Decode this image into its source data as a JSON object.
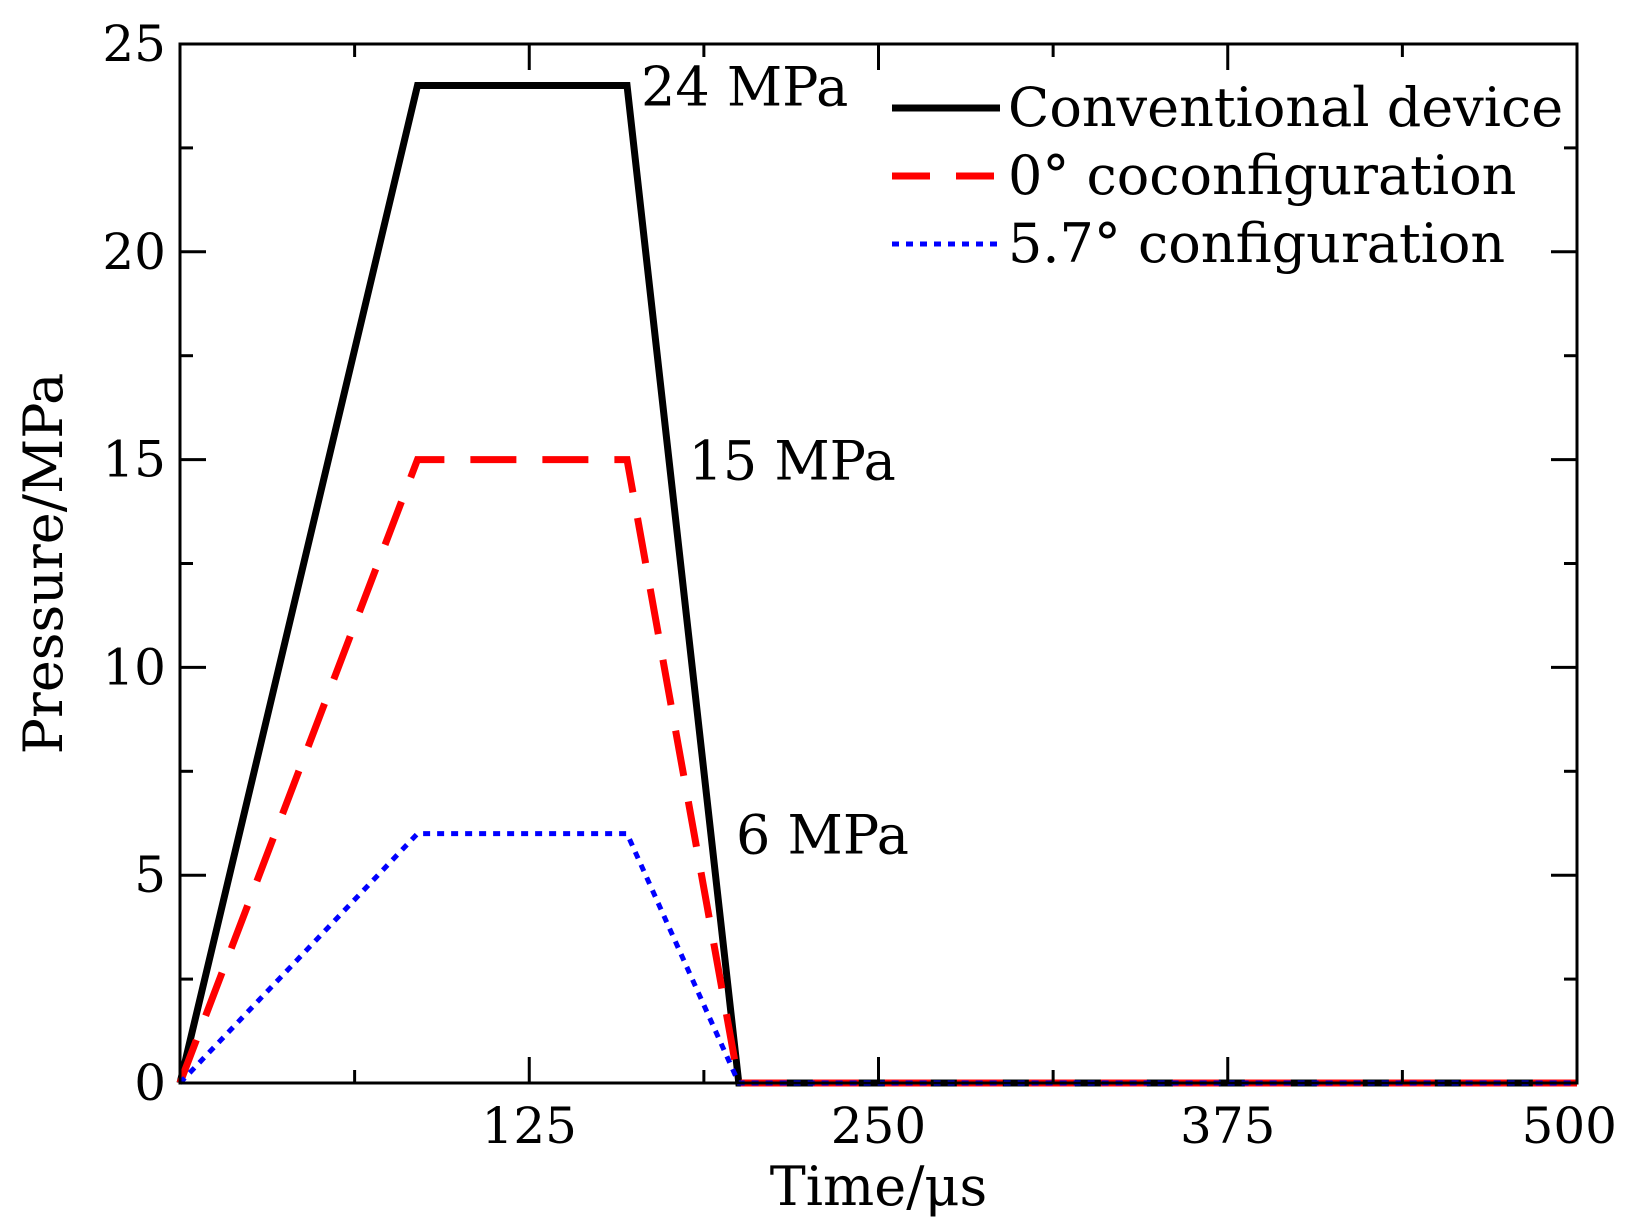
{
  "chart_data": {
    "type": "line",
    "xlabel": "Time/μs",
    "ylabel": "Pressure/MPa",
    "xlim": [
      0,
      500
    ],
    "ylim": [
      0,
      25
    ],
    "xticks": [
      125,
      250,
      375,
      500
    ],
    "yticks": [
      0,
      5,
      10,
      15,
      20,
      25
    ],
    "xtick_labels": [
      "125",
      "250",
      "375",
      "500"
    ],
    "ytick_labels": [
      "0",
      "5",
      "10",
      "15",
      "20",
      "25"
    ],
    "grid": false,
    "legend_position": "top-right",
    "series": [
      {
        "name": "Conventional device",
        "color": "#000000",
        "style": "solid",
        "x": [
          0,
          85,
          160,
          200,
          500
        ],
        "y": [
          0,
          24,
          24,
          0,
          0
        ]
      },
      {
        "name": "0° coconfiguration",
        "color": "#ff0000",
        "style": "dashed",
        "x": [
          0,
          85,
          160,
          200,
          500
        ],
        "y": [
          0,
          15,
          15,
          0,
          0
        ]
      },
      {
        "name": "5.7° configuration",
        "color": "#0000ff",
        "style": "dotted",
        "x": [
          0,
          85,
          160,
          200,
          500
        ],
        "y": [
          0,
          6,
          6,
          0,
          0
        ]
      }
    ],
    "annotations": [
      {
        "text": "24 MPa",
        "x": 165,
        "y": 24
      },
      {
        "text": "15 MPa",
        "x": 182,
        "y": 15
      },
      {
        "text": "6 MPa",
        "x": 199,
        "y": 6
      }
    ]
  }
}
